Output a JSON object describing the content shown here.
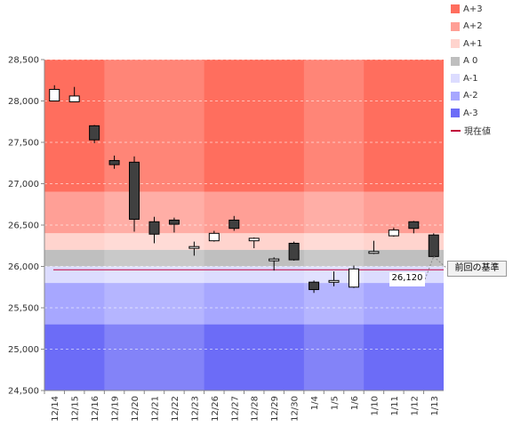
{
  "chart_data": {
    "type": "candlestick",
    "ylim": [
      24500,
      28500
    ],
    "y_ticks": [
      "24,500",
      "25,000",
      "25,500",
      "26,000",
      "26,500",
      "27,000",
      "27,500",
      "28,000",
      "28,500"
    ],
    "y_tick_values": [
      24500,
      25000,
      25500,
      26000,
      26500,
      27000,
      27500,
      28000,
      28500
    ],
    "categories": [
      "12/14",
      "12/15",
      "12/16",
      "12/19",
      "12/20",
      "12/21",
      "12/22",
      "12/23",
      "12/26",
      "12/27",
      "12/28",
      "12/29",
      "12/30",
      "1/4",
      "1/5",
      "1/6",
      "1/10",
      "1/11",
      "1/12",
      "1/13"
    ],
    "candles": [
      {
        "open": 28000,
        "close": 28140,
        "high": 28190,
        "low": 28000
      },
      {
        "open": 27990,
        "close": 28060,
        "high": 28170,
        "low": 27990
      },
      {
        "open": 27700,
        "close": 27530,
        "high": 27710,
        "low": 27490
      },
      {
        "open": 27280,
        "close": 27230,
        "high": 27340,
        "low": 27180
      },
      {
        "open": 27260,
        "close": 26570,
        "high": 27330,
        "low": 26420
      },
      {
        "open": 26540,
        "close": 26390,
        "high": 26600,
        "low": 26280
      },
      {
        "open": 26560,
        "close": 26510,
        "high": 26590,
        "low": 26410
      },
      {
        "open": 26220,
        "close": 26240,
        "high": 26300,
        "low": 26130
      },
      {
        "open": 26310,
        "close": 26400,
        "high": 26430,
        "low": 26300
      },
      {
        "open": 26560,
        "close": 26460,
        "high": 26610,
        "low": 26430
      },
      {
        "open": 26310,
        "close": 26340,
        "high": 26350,
        "low": 26220
      },
      {
        "open": 26080,
        "close": 26090,
        "high": 26110,
        "low": 25950
      },
      {
        "open": 26280,
        "close": 26080,
        "high": 26300,
        "low": 26070
      },
      {
        "open": 25810,
        "close": 25720,
        "high": 25830,
        "low": 25680
      },
      {
        "open": 25810,
        "close": 25830,
        "high": 25940,
        "low": 25760
      },
      {
        "open": 25750,
        "close": 25970,
        "high": 26010,
        "low": 25740
      },
      {
        "open": 26170,
        "close": 26180,
        "high": 26310,
        "low": 26150
      },
      {
        "open": 26370,
        "close": 26440,
        "high": 26470,
        "low": 26360
      },
      {
        "open": 26540,
        "close": 26460,
        "high": 26550,
        "low": 26400
      },
      {
        "open": 26380,
        "close": 26120,
        "high": 26400,
        "low": 26110
      }
    ],
    "bands": [
      {
        "name": "A+3",
        "from": 26900,
        "to": 28500,
        "color": "#ff6e5e"
      },
      {
        "name": "A+2",
        "from": 26400,
        "to": 26900,
        "color": "#ff9f96"
      },
      {
        "name": "A+1",
        "from": 26200,
        "to": 26400,
        "color": "#ffd4ce"
      },
      {
        "name": "A 0",
        "from": 26000,
        "to": 26200,
        "color": "#bfbfbf"
      },
      {
        "name": "A-1",
        "from": 25800,
        "to": 26000,
        "color": "#dcdcff"
      },
      {
        "name": "A-2",
        "from": 25300,
        "to": 25800,
        "color": "#a7a7ff"
      },
      {
        "name": "A-3",
        "from": 24500,
        "to": 25300,
        "color": "#6c6cf7"
      }
    ],
    "current_value_line": {
      "value": 25960,
      "color": "#c0003a"
    },
    "annotation_value": "26,120",
    "annotation_label": "前回の基準",
    "legend": [
      {
        "label": "A+3",
        "color": "#ff6e5e",
        "kind": "swatch"
      },
      {
        "label": "A+2",
        "color": "#ff9f96",
        "kind": "swatch"
      },
      {
        "label": "A+1",
        "color": "#ffd4ce",
        "kind": "swatch"
      },
      {
        "label": "A 0",
        "color": "#bfbfbf",
        "kind": "swatch"
      },
      {
        "label": "A-1",
        "color": "#dcdcff",
        "kind": "swatch"
      },
      {
        "label": "A-2",
        "color": "#a7a7ff",
        "kind": "swatch"
      },
      {
        "label": "A-3",
        "color": "#6c6cf7",
        "kind": "swatch"
      },
      {
        "label": "現在値",
        "color": "#c0003a",
        "kind": "line"
      }
    ],
    "colors": {
      "up_fill": "#ffffff",
      "down_fill": "#404040",
      "candle_stroke": "#000000"
    },
    "grid": true,
    "legend_position": "right"
  }
}
